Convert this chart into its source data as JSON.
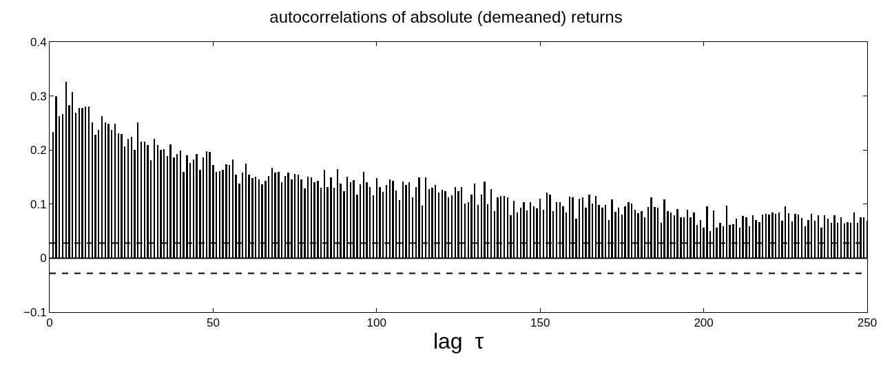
{
  "chart_data": {
    "type": "bar",
    "title": "autocorrelations of absolute (demeaned) returns",
    "xlabel": "lag  τ",
    "x": [
      1,
      2,
      3,
      4,
      5,
      6,
      7,
      8,
      9,
      10,
      11,
      12,
      13,
      14,
      15,
      16,
      17,
      18,
      19,
      20,
      21,
      22,
      23,
      24,
      25,
      26,
      27,
      28,
      29,
      30,
      31,
      32,
      33,
      34,
      35,
      36,
      37,
      38,
      39,
      40,
      41,
      42,
      43,
      44,
      45,
      46,
      47,
      48,
      49,
      50,
      51,
      52,
      53,
      54,
      55,
      56,
      57,
      58,
      59,
      60,
      61,
      62,
      63,
      64,
      65,
      66,
      67,
      68,
      69,
      70,
      71,
      72,
      73,
      74,
      75,
      76,
      77,
      78,
      79,
      80,
      81,
      82,
      83,
      84,
      85,
      86,
      87,
      88,
      89,
      90,
      91,
      92,
      93,
      94,
      95,
      96,
      97,
      98,
      99,
      100,
      101,
      102,
      103,
      104,
      105,
      106,
      107,
      108,
      109,
      110,
      111,
      112,
      113,
      114,
      115,
      116,
      117,
      118,
      119,
      120,
      121,
      122,
      123,
      124,
      125,
      126,
      127,
      128,
      129,
      130,
      131,
      132,
      133,
      134,
      135,
      136,
      137,
      138,
      139,
      140,
      141,
      142,
      143,
      144,
      145,
      146,
      147,
      148,
      149,
      150,
      151,
      152,
      153,
      154,
      155,
      156,
      157,
      158,
      159,
      160,
      161,
      162,
      163,
      164,
      165,
      166,
      167,
      168,
      169,
      170,
      171,
      172,
      173,
      174,
      175,
      176,
      177,
      178,
      179,
      180,
      181,
      182,
      183,
      184,
      185,
      186,
      187,
      188,
      189,
      190,
      191,
      192,
      193,
      194,
      195,
      196,
      197,
      198,
      199,
      200,
      201,
      202,
      203,
      204,
      205,
      206,
      207,
      208,
      209,
      210,
      211,
      212,
      213,
      214,
      215,
      216,
      217,
      218,
      219,
      220,
      221,
      222,
      223,
      224,
      225,
      226,
      227,
      228,
      229,
      230,
      231,
      232,
      233,
      234,
      235,
      236,
      237,
      238,
      239,
      240,
      241,
      242,
      243,
      244,
      245,
      246,
      247,
      248,
      249,
      250
    ],
    "series": [
      {
        "color": "#000000",
        "values": [
          0.233,
          0.3,
          0.263,
          0.266,
          0.326,
          0.283,
          0.307,
          0.269,
          0.278,
          0.278,
          0.28,
          0.28,
          0.251,
          0.228,
          0.237,
          0.263,
          0.251,
          0.248,
          0.237,
          0.249,
          0.231,
          0.229,
          0.206,
          0.22,
          0.225,
          0.2,
          0.251,
          0.215,
          0.216,
          0.209,
          0.181,
          0.22,
          0.209,
          0.2,
          0.202,
          0.189,
          0.21,
          0.186,
          0.193,
          0.199,
          0.16,
          0.19,
          0.176,
          0.183,
          0.192,
          0.164,
          0.186,
          0.198,
          0.197,
          0.172,
          0.159,
          0.161,
          0.164,
          0.173,
          0.172,
          0.182,
          0.154,
          0.138,
          0.158,
          0.175,
          0.155,
          0.148,
          0.151,
          0.145,
          0.137,
          0.143,
          0.152,
          0.167,
          0.158,
          0.159,
          0.141,
          0.152,
          0.158,
          0.146,
          0.156,
          0.155,
          0.146,
          0.129,
          0.151,
          0.149,
          0.141,
          0.143,
          0.13,
          0.163,
          0.132,
          0.149,
          0.13,
          0.165,
          0.138,
          0.124,
          0.151,
          0.14,
          0.144,
          0.118,
          0.137,
          0.159,
          0.141,
          0.131,
          0.116,
          0.148,
          0.132,
          0.123,
          0.135,
          0.145,
          0.143,
          0.125,
          0.107,
          0.142,
          0.135,
          0.141,
          0.112,
          0.132,
          0.15,
          0.097,
          0.15,
          0.128,
          0.13,
          0.136,
          0.122,
          0.126,
          0.124,
          0.113,
          0.116,
          0.132,
          0.124,
          0.132,
          0.101,
          0.104,
          0.117,
          0.138,
          0.099,
          0.118,
          0.142,
          0.1,
          0.128,
          0.087,
          0.112,
          0.115,
          0.115,
          0.112,
          0.079,
          0.106,
          0.085,
          0.093,
          0.104,
          0.088,
          0.103,
          0.096,
          0.092,
          0.11,
          0.089,
          0.121,
          0.118,
          0.087,
          0.104,
          0.104,
          0.096,
          0.085,
          0.114,
          0.112,
          0.073,
          0.11,
          0.113,
          0.093,
          0.118,
          0.101,
          0.115,
          0.099,
          0.094,
          0.098,
          0.07,
          0.109,
          0.086,
          0.093,
          0.081,
          0.096,
          0.103,
          0.101,
          0.09,
          0.083,
          0.087,
          0.076,
          0.095,
          0.112,
          0.095,
          0.094,
          0.066,
          0.109,
          0.087,
          0.084,
          0.08,
          0.091,
          0.076,
          0.076,
          0.09,
          0.076,
          0.084,
          0.062,
          0.07,
          0.057,
          0.096,
          0.05,
          0.088,
          0.056,
          0.065,
          0.059,
          0.097,
          0.062,
          0.063,
          0.073,
          0.057,
          0.078,
          0.075,
          0.059,
          0.079,
          0.071,
          0.067,
          0.081,
          0.082,
          0.081,
          0.084,
          0.082,
          0.084,
          0.069,
          0.096,
          0.083,
          0.068,
          0.082,
          0.081,
          0.074,
          0.059,
          0.07,
          0.082,
          0.069,
          0.079,
          0.057,
          0.079,
          0.073,
          0.065,
          0.079,
          0.065,
          0.076,
          0.064,
          0.067,
          0.065,
          0.084,
          0.065,
          0.076,
          0.075,
          0.069
        ]
      }
    ],
    "xlim": [
      0,
      250
    ],
    "xticks": [
      0,
      50,
      100,
      150,
      200,
      250
    ],
    "ylim": [
      -0.1,
      0.4
    ],
    "yticks": [
      {
        "value": -0.1,
        "label": "−0.1"
      },
      0,
      0.1,
      0.2,
      0.3,
      0.4
    ],
    "ref_lines": [
      {
        "axis": "y",
        "value": 0,
        "color": "#000000",
        "line_style": "solid"
      },
      {
        "axis": "y",
        "value": 0.028,
        "color": "#000000",
        "line_style": "dashed"
      },
      {
        "axis": "y",
        "value": -0.028,
        "color": "#000000",
        "line_style": "dashed"
      }
    ]
  }
}
